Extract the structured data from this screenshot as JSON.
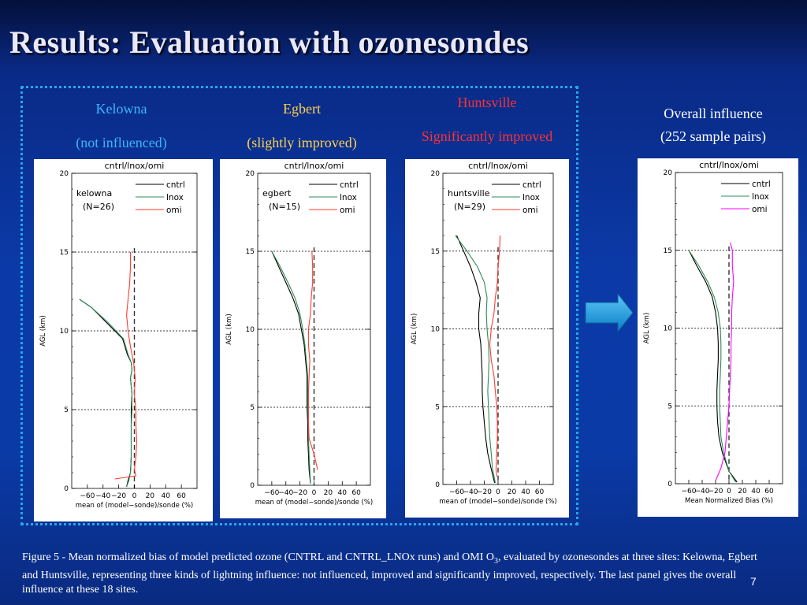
{
  "slide": {
    "title": "Results: Evaluation with ozonesondes",
    "page_number": "7",
    "caption_pre": "Figure 5 - Mean normalized bias of model predicted ozone (CNTRL and CNTRL_LNOx runs) and OMI O",
    "caption_sub": "3",
    "caption_post": ", evaluated by ozonesondes at three sites: Kelowna, Egbert and Huntsville, representing three kinds of lightning influence: not influenced, improved and significantly improved, respectively. The last panel gives the overall influence at these 18 sites."
  },
  "labels": {
    "kelowna": {
      "line1": "Kelowna",
      "line2": "(not influenced)",
      "color": "#3ab6ff"
    },
    "egbert": {
      "line1": "Egbert",
      "line2": "(slightly improved)",
      "color": "#ffd24a"
    },
    "huntsville": {
      "line1": "Huntsville",
      "line2": "Significantly improved",
      "color": "#ff3030"
    },
    "overall": {
      "line1": "Overall influence",
      "line2": "(252 sample pairs)",
      "color": "#ffffff"
    }
  },
  "colors": {
    "cntrl": "#000000",
    "lnox": "#2e8b57",
    "omi": "#ff3b2f",
    "omi_overall": "#ff00ff",
    "arrow": "#1ea0e6"
  },
  "chart_data": [
    {
      "type": "line",
      "title": "cntrl/lnox/omi",
      "site_label": "kelowna",
      "n_label": "(N=26)",
      "xlabel": "mean of (model−sonde)/sonde (%)",
      "ylabel": "AGL (km)",
      "xlim": [
        -80,
        80
      ],
      "ylim": [
        0,
        20
      ],
      "xticks": [
        -60,
        -40,
        -20,
        0,
        20,
        40,
        60
      ],
      "xtick_labels": [
        "−60",
        "−40",
        "−20",
        "0",
        "20",
        "40",
        "60"
      ],
      "yticks": [
        0,
        5,
        10,
        15,
        20
      ],
      "gridlines_y": [
        5,
        10,
        15
      ],
      "series": [
        {
          "name": "cntrl",
          "key": "cntrl",
          "points": [
            [
              -10,
              0.1
            ],
            [
              -8,
              0.5
            ],
            [
              -5,
              1.0
            ],
            [
              -4,
              2
            ],
            [
              -4,
              3
            ],
            [
              -4,
              4
            ],
            [
              -4,
              5
            ],
            [
              -3,
              6
            ],
            [
              -5,
              7
            ],
            [
              -3,
              7.5
            ],
            [
              -4,
              8
            ],
            [
              -9,
              8.5
            ],
            [
              -15,
              9.5
            ],
            [
              -35,
              10.5
            ],
            [
              -55,
              11.5
            ],
            [
              -70,
              12
            ]
          ]
        },
        {
          "name": "lnox",
          "key": "lnox",
          "points": [
            [
              -10,
              0.1
            ],
            [
              -7,
              0.5
            ],
            [
              -5,
              1.0
            ],
            [
              -4,
              2
            ],
            [
              -4,
              3
            ],
            [
              -4,
              4
            ],
            [
              -3,
              5
            ],
            [
              -3,
              6
            ],
            [
              -5,
              7
            ],
            [
              -3,
              7.5
            ],
            [
              -4,
              8
            ],
            [
              -8,
              8.5
            ],
            [
              -14,
              9.5
            ],
            [
              -33,
              10.5
            ],
            [
              -55,
              11.5
            ],
            [
              -70,
              12
            ]
          ]
        },
        {
          "name": "omi",
          "key": "omi",
          "points": [
            [
              -25,
              0.6
            ],
            [
              2,
              0.8
            ],
            [
              0,
              1.2
            ],
            [
              2,
              2
            ],
            [
              3,
              3
            ],
            [
              2,
              4
            ],
            [
              2,
              5
            ],
            [
              0,
              6
            ],
            [
              1,
              7
            ],
            [
              -1,
              8
            ],
            [
              -5,
              9
            ],
            [
              -8,
              10
            ],
            [
              -10,
              11
            ],
            [
              -8,
              12
            ],
            [
              -6,
              13
            ],
            [
              -5,
              14
            ],
            [
              -5,
              15
            ]
          ]
        }
      ]
    },
    {
      "type": "line",
      "title": "cntrl/lnox/omi",
      "site_label": "egbert",
      "n_label": "(N=15)",
      "xlabel": "mean of (model−sonde)/sonde (%)",
      "ylabel": "AGL (km)",
      "xlim": [
        -80,
        80
      ],
      "ylim": [
        0,
        20
      ],
      "xticks": [
        -60,
        -40,
        -20,
        0,
        20,
        40,
        60
      ],
      "xtick_labels": [
        "−60",
        "−40",
        "−20",
        "0",
        "20",
        "40",
        "60"
      ],
      "yticks": [
        0,
        5,
        10,
        15,
        20
      ],
      "gridlines_y": [
        5,
        10,
        15
      ],
      "series": [
        {
          "name": "cntrl",
          "key": "cntrl",
          "points": [
            [
              -5,
              0.1
            ],
            [
              -7,
              1
            ],
            [
              -8,
              2
            ],
            [
              -9,
              3
            ],
            [
              -9,
              4
            ],
            [
              -10,
              5
            ],
            [
              -10,
              6
            ],
            [
              -10,
              7
            ],
            [
              -12,
              8
            ],
            [
              -14,
              9
            ],
            [
              -18,
              10
            ],
            [
              -22,
              11
            ],
            [
              -30,
              12
            ],
            [
              -40,
              13
            ],
            [
              -50,
              14
            ],
            [
              -60,
              15
            ]
          ]
        },
        {
          "name": "lnox",
          "key": "lnox",
          "points": [
            [
              -5,
              0.1
            ],
            [
              -6,
              1
            ],
            [
              -7,
              2
            ],
            [
              -8,
              3
            ],
            [
              -8,
              4
            ],
            [
              -9,
              5
            ],
            [
              -9,
              6
            ],
            [
              -9,
              7
            ],
            [
              -11,
              8
            ],
            [
              -13,
              9
            ],
            [
              -16,
              10
            ],
            [
              -20,
              11
            ],
            [
              -27,
              12
            ],
            [
              -37,
              13
            ],
            [
              -48,
              14
            ],
            [
              -60,
              15
            ]
          ]
        },
        {
          "name": "omi",
          "key": "omi",
          "points": [
            [
              5,
              1.0
            ],
            [
              0,
              2
            ],
            [
              -7,
              3
            ],
            [
              -8,
              4
            ],
            [
              -8,
              5
            ],
            [
              -8,
              6
            ],
            [
              -7,
              7
            ],
            [
              -6,
              8
            ],
            [
              -8,
              9
            ],
            [
              -8,
              10
            ],
            [
              -5,
              11
            ],
            [
              -4,
              12
            ],
            [
              -2,
              13
            ],
            [
              -2,
              14
            ],
            [
              -3,
              15
            ]
          ]
        }
      ]
    },
    {
      "type": "line",
      "title": "cntrl/lnox/omi",
      "site_label": "huntsville",
      "n_label": "(N=29)",
      "xlabel": "mean of (model−sonde)/sonde (%)",
      "ylabel": "AGL (km)",
      "xlim": [
        -80,
        80
      ],
      "ylim": [
        0,
        20
      ],
      "xticks": [
        -60,
        -40,
        -20,
        0,
        20,
        40,
        60
      ],
      "xtick_labels": [
        "−60",
        "−40",
        "−20",
        "0",
        "20",
        "40",
        "60"
      ],
      "yticks": [
        0,
        5,
        10,
        15,
        20
      ],
      "gridlines_y": [
        5,
        10,
        15
      ],
      "series": [
        {
          "name": "cntrl",
          "key": "cntrl",
          "points": [
            [
              -5,
              0.1
            ],
            [
              -10,
              1
            ],
            [
              -15,
              2
            ],
            [
              -18,
              3
            ],
            [
              -20,
              4
            ],
            [
              -22,
              5
            ],
            [
              -23,
              6
            ],
            [
              -23,
              7
            ],
            [
              -24,
              8
            ],
            [
              -25,
              9
            ],
            [
              -28,
              10
            ],
            [
              -28,
              11
            ],
            [
              -26,
              12
            ],
            [
              -32,
              13
            ],
            [
              -40,
              14
            ],
            [
              -50,
              15
            ],
            [
              -60,
              16
            ]
          ]
        },
        {
          "name": "lnox",
          "key": "lnox",
          "points": [
            [
              -4,
              0.1
            ],
            [
              -8,
              1
            ],
            [
              -10,
              2
            ],
            [
              -12,
              3
            ],
            [
              -13,
              4
            ],
            [
              -14,
              5
            ],
            [
              -15,
              6
            ],
            [
              -14,
              7
            ],
            [
              -13,
              8
            ],
            [
              -14,
              9
            ],
            [
              -16,
              10
            ],
            [
              -17,
              11
            ],
            [
              -16,
              12
            ],
            [
              -20,
              13
            ],
            [
              -30,
              14
            ],
            [
              -45,
              15
            ],
            [
              -62,
              16
            ]
          ]
        },
        {
          "name": "omi",
          "key": "omi",
          "points": [
            [
              -2,
              0.5
            ],
            [
              -3,
              1
            ],
            [
              -2,
              2
            ],
            [
              -1,
              3
            ],
            [
              -1,
              4
            ],
            [
              -2,
              5
            ],
            [
              -4,
              6
            ],
            [
              -6,
              7
            ],
            [
              -10,
              8
            ],
            [
              -12,
              9
            ],
            [
              -10,
              10
            ],
            [
              -6,
              11
            ],
            [
              -4,
              12
            ],
            [
              -1,
              13
            ],
            [
              0,
              14
            ],
            [
              2,
              15
            ],
            [
              3,
              16
            ]
          ]
        }
      ]
    },
    {
      "type": "line",
      "title": "cntrl/lnox/omi",
      "xlabel": "Mean Normalized Bias (%)",
      "ylabel": "AGL (km)",
      "xlim": [
        -80,
        80
      ],
      "ylim": [
        0,
        20
      ],
      "xticks": [
        -60,
        -40,
        -20,
        0,
        20,
        40,
        60
      ],
      "xtick_labels": [
        "−60",
        "−40",
        "−20",
        "0",
        "20",
        "40",
        "60"
      ],
      "yticks": [
        0,
        5,
        10,
        15,
        20
      ],
      "gridlines_y": [
        5,
        10,
        15
      ],
      "series": [
        {
          "name": "cntrl",
          "key": "cntrl",
          "points": [
            [
              12,
              0.1
            ],
            [
              0,
              0.8
            ],
            [
              -10,
              2
            ],
            [
              -15,
              3
            ],
            [
              -17,
              4
            ],
            [
              -18,
              5
            ],
            [
              -18,
              6
            ],
            [
              -17,
              7
            ],
            [
              -16,
              8
            ],
            [
              -16,
              9
            ],
            [
              -17,
              10
            ],
            [
              -20,
              11
            ],
            [
              -25,
              12
            ],
            [
              -35,
              13
            ],
            [
              -48,
              14
            ],
            [
              -60,
              15
            ]
          ]
        },
        {
          "name": "lnox",
          "key": "lnox",
          "points": [
            [
              10,
              0.1
            ],
            [
              0,
              0.8
            ],
            [
              -8,
              2
            ],
            [
              -12,
              3
            ],
            [
              -13,
              4
            ],
            [
              -14,
              5
            ],
            [
              -14,
              6
            ],
            [
              -13,
              7
            ],
            [
              -12,
              8
            ],
            [
              -12,
              9
            ],
            [
              -13,
              10
            ],
            [
              -16,
              11
            ],
            [
              -22,
              12
            ],
            [
              -32,
              13
            ],
            [
              -45,
              14
            ],
            [
              -60,
              15
            ]
          ]
        },
        {
          "name": "omi",
          "key": "omi_overall",
          "points": [
            [
              -20,
              0.2
            ],
            [
              -12,
              1
            ],
            [
              -6,
              2
            ],
            [
              -4,
              3
            ],
            [
              -2,
              4
            ],
            [
              0,
              5
            ],
            [
              1,
              6
            ],
            [
              2,
              7
            ],
            [
              3,
              8
            ],
            [
              3,
              9
            ],
            [
              4,
              10
            ],
            [
              4,
              11
            ],
            [
              5,
              12
            ],
            [
              7,
              13
            ],
            [
              5,
              14
            ],
            [
              5,
              15
            ],
            [
              2,
              15.5
            ]
          ]
        }
      ]
    }
  ]
}
